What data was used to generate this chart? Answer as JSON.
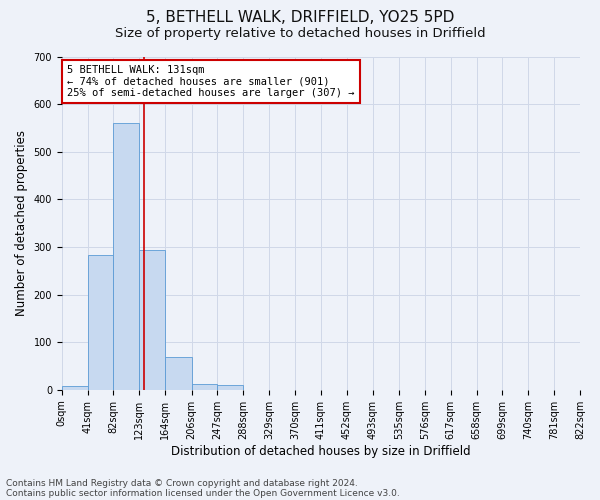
{
  "title_line1": "5, BETHELL WALK, DRIFFIELD, YO25 5PD",
  "title_line2": "Size of property relative to detached houses in Driffield",
  "xlabel": "Distribution of detached houses by size in Driffield",
  "ylabel": "Number of detached properties",
  "bin_edges": [
    0,
    41,
    82,
    123,
    164,
    206,
    247,
    288,
    329,
    370,
    411,
    452,
    493,
    535,
    576,
    617,
    658,
    699,
    740,
    781,
    822
  ],
  "bar_values": [
    8,
    283,
    560,
    293,
    68,
    13,
    10,
    0,
    0,
    0,
    0,
    0,
    0,
    0,
    0,
    0,
    0,
    0,
    0,
    0
  ],
  "bar_color": "#c7d9f0",
  "bar_edge_color": "#5b9bd5",
  "grid_color": "#d0d8e8",
  "vline_x": 131,
  "vline_color": "#cc0000",
  "annotation_text": "5 BETHELL WALK: 131sqm\n← 74% of detached houses are smaller (901)\n25% of semi-detached houses are larger (307) →",
  "annotation_box_color": "#ffffff",
  "annotation_box_edge": "#cc0000",
  "ylim": [
    0,
    700
  ],
  "yticks": [
    0,
    100,
    200,
    300,
    400,
    500,
    600,
    700
  ],
  "footer_line1": "Contains HM Land Registry data © Crown copyright and database right 2024.",
  "footer_line2": "Contains public sector information licensed under the Open Government Licence v3.0.",
  "bg_color": "#eef2f9",
  "title_fontsize": 11,
  "subtitle_fontsize": 9.5,
  "tick_label_fontsize": 7,
  "axis_label_fontsize": 8.5,
  "footer_fontsize": 6.5
}
